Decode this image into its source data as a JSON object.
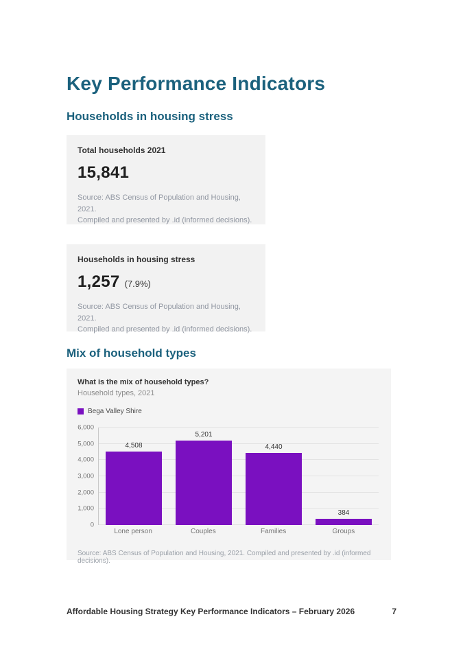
{
  "page": {
    "title": "Key Performance Indicators",
    "footer": {
      "text": "Affordable Housing Strategy Key Performance Indicators – February 2026",
      "page_number": "7"
    }
  },
  "sections": {
    "housing_stress": {
      "heading": "Households in housing stress"
    },
    "household_mix": {
      "heading": "Mix of household types"
    }
  },
  "cards": {
    "total_households": {
      "title": "Total households 2021",
      "value": "15,841",
      "source_line1": "Source: ABS Census of Population and Housing, 2021.",
      "source_line2": "Compiled and presented by .id (informed decisions)."
    },
    "stress_households": {
      "title": "Households in housing stress",
      "value": "1,257",
      "value_suffix": "(7.9%)",
      "source_line1": "Source: ABS Census of Population and Housing, 2021.",
      "source_line2": "Compiled and presented by .id (informed decisions)."
    }
  },
  "chart_card": {
    "question": "What is the mix of household types?",
    "subtitle": "Household types, 2021",
    "legend": [
      {
        "label": "Bega Valley Shire",
        "color": "#7A10C0"
      }
    ],
    "source": "Source: ABS Census of Population and Housing, 2021. Compiled and presented by .id (informed decisions)."
  },
  "chart_data": {
    "type": "bar",
    "title": "What is the mix of household types?",
    "subtitle": "Household types, 2021",
    "series_name": "Bega Valley Shire",
    "categories": [
      "Lone person",
      "Couples",
      "Families",
      "Groups"
    ],
    "values": [
      4508,
      5201,
      4440,
      384
    ],
    "value_labels": [
      "4,508",
      "5,201",
      "4,440",
      "384"
    ],
    "ylim": [
      0,
      6000
    ],
    "yticks": [
      {
        "value": 0,
        "label": "0"
      },
      {
        "value": 1000,
        "label": "1,000"
      },
      {
        "value": 2000,
        "label": "2,000"
      },
      {
        "value": 3000,
        "label": "3,000"
      },
      {
        "value": 4000,
        "label": "4,000"
      },
      {
        "value": 5000,
        "label": "5,000"
      },
      {
        "value": 6000,
        "label": "6,000"
      }
    ],
    "bar_color": "#7A10C0",
    "grid": true,
    "legend_position": "top-left"
  },
  "colors": {
    "heading_teal": "#1B617D",
    "card_background": "#f2f2f2",
    "chart_card_background": "#f4f4f4",
    "bar_purple": "#7A10C0",
    "source_gray": "#9096a1"
  }
}
